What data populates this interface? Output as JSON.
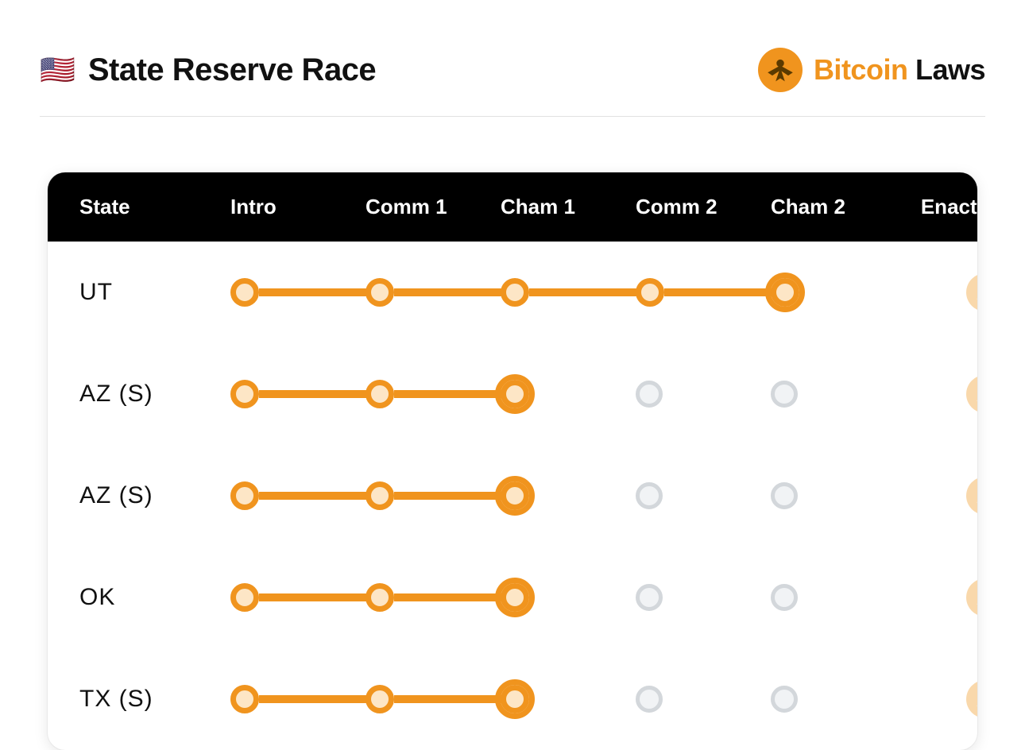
{
  "header": {
    "flag": "🇺🇸",
    "title": "State Reserve Race",
    "logo_bitcoin": "Bitcoin",
    "logo_laws": "Laws"
  },
  "columns": [
    "State",
    "Intro",
    "Comm 1",
    "Cham 1",
    "Comm 2",
    "Cham 2",
    "Enacted"
  ],
  "colors": {
    "accent": "#f0941e",
    "accent_fill": "#fde6c6",
    "empty_border": "#d3d7db",
    "empty_fill": "#f1f3f5",
    "coin_bg": "#f9d8ab",
    "text": "#111111",
    "header_bg": "#000000"
  },
  "rows": [
    {
      "state": "UT",
      "progress": 5,
      "enacted": false
    },
    {
      "state": "AZ (S)",
      "progress": 3,
      "enacted": false
    },
    {
      "state": "AZ (S)",
      "progress": 3,
      "enacted": false
    },
    {
      "state": "OK",
      "progress": 3,
      "enacted": false
    },
    {
      "state": "TX (S)",
      "progress": 3,
      "enacted": false
    }
  ],
  "step_count": 5
}
